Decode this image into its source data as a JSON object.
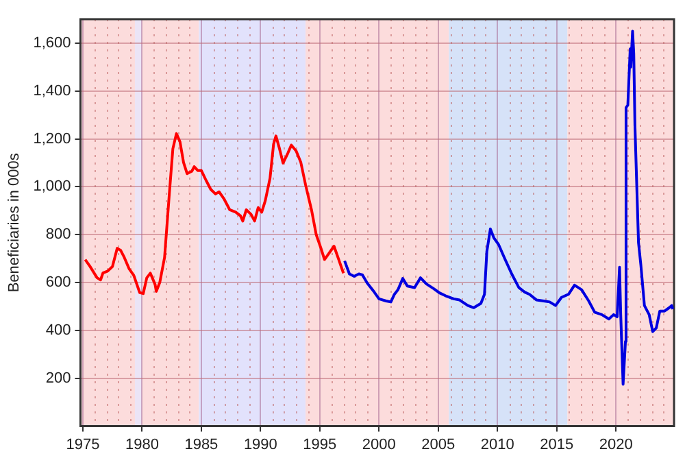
{
  "chart_data": {
    "type": "line",
    "ylabel": "Beneficiaries in 000s",
    "xlim": [
      1974.8,
      2024.9
    ],
    "ylim": [
      0,
      1700
    ],
    "xticks": [
      1975,
      {
        "value": 1976,
        "label": null
      },
      {
        "value": 1977,
        "label": null
      },
      {
        "value": 1978,
        "label": null
      },
      {
        "value": 1979,
        "label": null
      },
      1980,
      {
        "value": 1981,
        "label": null
      },
      {
        "value": 1982,
        "label": null
      },
      {
        "value": 1983,
        "label": null
      },
      {
        "value": 1984,
        "label": null
      },
      1985,
      {
        "value": 1986,
        "label": null
      },
      {
        "value": 1987,
        "label": null
      },
      {
        "value": 1988,
        "label": null
      },
      {
        "value": 1989,
        "label": null
      },
      1990,
      {
        "value": 1991,
        "label": null
      },
      {
        "value": 1992,
        "label": null
      },
      {
        "value": 1993,
        "label": null
      },
      {
        "value": 1994,
        "label": null
      },
      1995,
      {
        "value": 1996,
        "label": null
      },
      {
        "value": 1997,
        "label": null
      },
      {
        "value": 1998,
        "label": null
      },
      {
        "value": 1999,
        "label": null
      },
      2000,
      {
        "value": 2001,
        "label": null
      },
      {
        "value": 2002,
        "label": null
      },
      {
        "value": 2003,
        "label": null
      },
      {
        "value": 2004,
        "label": null
      },
      2005,
      {
        "value": 2006,
        "label": null
      },
      {
        "value": 2007,
        "label": null
      },
      {
        "value": 2008,
        "label": null
      },
      {
        "value": 2009,
        "label": null
      },
      2010,
      {
        "value": 2011,
        "label": null
      },
      {
        "value": 2012,
        "label": null
      },
      {
        "value": 2013,
        "label": null
      },
      {
        "value": 2014,
        "label": null
      },
      2015,
      {
        "value": 2016,
        "label": null
      },
      {
        "value": 2017,
        "label": null
      },
      {
        "value": 2018,
        "label": null
      },
      {
        "value": 2019,
        "label": null
      },
      2020,
      {
        "value": 2021,
        "label": null
      },
      {
        "value": 2022,
        "label": null
      },
      {
        "value": 2023,
        "label": null
      },
      {
        "value": 2024,
        "label": null
      }
    ],
    "yticks": [
      {
        "value": 200,
        "label": "200"
      },
      {
        "value": 400,
        "label": "400"
      },
      {
        "value": 600,
        "label": "600"
      },
      {
        "value": 800,
        "label": "800"
      },
      {
        "value": 1000,
        "label": "1,000"
      },
      {
        "value": 1200,
        "label": "1,200"
      },
      {
        "value": 1400,
        "label": "1,400"
      },
      {
        "value": 1600,
        "label": "1,600"
      }
    ],
    "grid": true,
    "legend": false,
    "marker": "none",
    "line_style": "solid",
    "bands": [
      {
        "axis": "x",
        "from": 1974.8,
        "to": 1979.4,
        "color": "#fcdcdc"
      },
      {
        "axis": "x",
        "from": 1979.4,
        "to": 1980,
        "color": "#ebe4f6"
      },
      {
        "axis": "x",
        "from": 1980,
        "to": 1984.8,
        "color": "#fcdcdc"
      },
      {
        "axis": "x",
        "from": 1984.8,
        "to": 1993.8,
        "color": "#e2e2fc"
      },
      {
        "axis": "x",
        "from": 1993.8,
        "to": 2005.9,
        "color": "#fcdcdc"
      },
      {
        "axis": "x",
        "from": 2005.9,
        "to": 2015.9,
        "color": "#d6e2f8"
      },
      {
        "axis": "x",
        "from": 2015.9,
        "to": 2024.9,
        "color": "#fcdcdc"
      }
    ],
    "series": [
      {
        "color": "#ff0000",
        "x": [
          1975.2,
          1975.6,
          1976.2,
          1976.5,
          1976.7,
          1977.1,
          1977.5,
          1977.9,
          1978.2,
          1978.5,
          1978.9,
          1979.3,
          1979.8,
          1980.1,
          1980.4,
          1980.7,
          1981.1,
          1981.2,
          1981.5,
          1981.9,
          1982.3,
          1982.6,
          1982.9,
          1983.2,
          1983.5,
          1983.8,
          1984.2,
          1984.4,
          1984.7,
          1985,
          1985.4,
          1985.8,
          1986.2,
          1986.5,
          1986.9,
          1987.4,
          1987.9,
          1988.3,
          1988.5,
          1988.8,
          1989.2,
          1989.5,
          1989.8,
          1990.1,
          1990.4,
          1990.8,
          1991.1,
          1991.3,
          1991.6,
          1991.9,
          1992.3,
          1992.6,
          1993,
          1993.4,
          1993.8,
          1994.3,
          1994.7,
          1995.1,
          1995.4,
          1995.8,
          1996.2,
          1996.6,
          1997
        ],
        "values": [
          696,
          668,
          620,
          611,
          640,
          648,
          667,
          743,
          734,
          705,
          658,
          630,
          558,
          554,
          620,
          639,
          592,
          563,
          601,
          705,
          970,
          1159,
          1222,
          1188,
          1102,
          1055,
          1065,
          1084,
          1068,
          1068,
          1027,
          989,
          970,
          979,
          951,
          904,
          894,
          879,
          857,
          904,
          885,
          857,
          913,
          894,
          942,
          1036,
          1178,
          1212,
          1159,
          1099,
          1140,
          1174,
          1150,
          1102,
          1008,
          904,
          800,
          743,
          696,
          724,
          752,
          696,
          639
        ]
      },
      {
        "color": "#0000e0",
        "x": [
          1997.1,
          1997.5,
          1997.9,
          1998.3,
          1998.6,
          1999,
          1999.6,
          2000,
          2000.6,
          2001,
          2001.3,
          2001.6,
          2002,
          2002.4,
          2003,
          2003.5,
          2004,
          2004.6,
          2005.1,
          2005.6,
          2006.3,
          2006.8,
          2007.5,
          2008,
          2008.6,
          2008.9,
          2009.1,
          2009.4,
          2009.7,
          2010.1,
          2010.6,
          2011.2,
          2011.8,
          2012.3,
          2012.7,
          2013.3,
          2013.9,
          2014.4,
          2014.9,
          2015.4,
          2016,
          2016.5,
          2017.1,
          2017.7,
          2018.2,
          2018.8,
          2019.4,
          2019.8,
          2020.1,
          2020.3,
          2020.4,
          2020.6,
          2020.8,
          2020.85,
          2021,
          2021.2,
          2021.25,
          2021.4,
          2021.5,
          2021.6,
          2021.9,
          2022.1,
          2022.4,
          2022.8,
          2023.1,
          2023.4,
          2023.7,
          2024.1,
          2024.5,
          2024.7,
          2024.8
        ],
        "values": [
          690,
          636,
          626,
          636,
          632,
          598,
          560,
          532,
          523,
          519,
          551,
          570,
          617,
          585,
          579,
          620,
          594,
          575,
          557,
          545,
          532,
          527,
          504,
          495,
          513,
          551,
          730,
          824,
          786,
          758,
          701,
          636,
          579,
          560,
          551,
          527,
          523,
          519,
          504,
          538,
          551,
          589,
          570,
          523,
          476,
          466,
          448,
          466,
          457,
          664,
          466,
          175,
          354,
          1331,
          1341,
          1576,
          1500,
          1650,
          1557,
          1256,
          767,
          673,
          504,
          466,
          395,
          410,
          481,
          481,
          495,
          504,
          489
        ]
      }
    ]
  }
}
